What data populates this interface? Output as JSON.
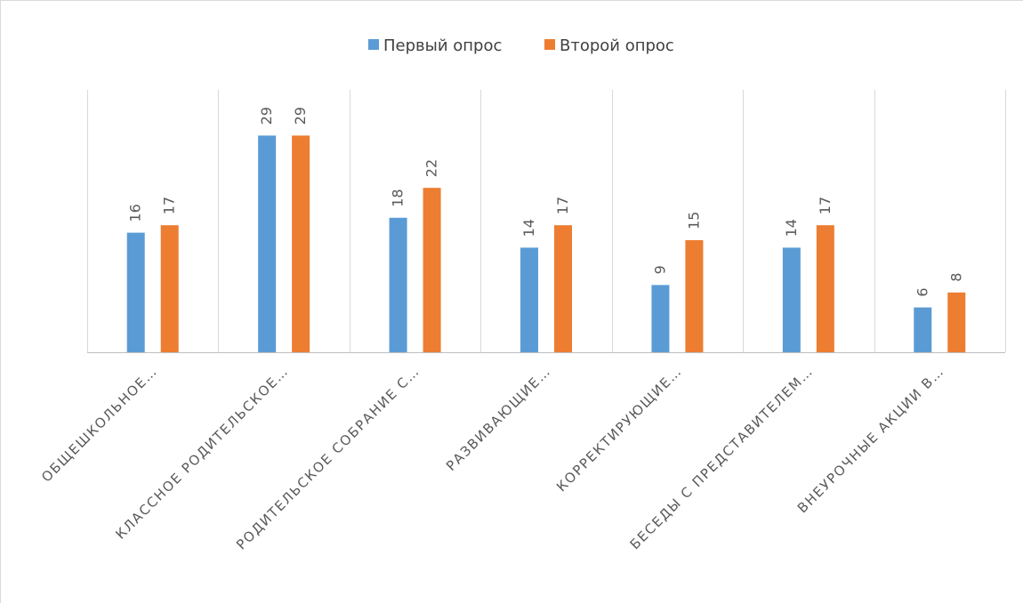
{
  "chart_data": {
    "type": "bar",
    "title": "",
    "xlabel": "",
    "ylabel": "",
    "ylim": [
      0,
      32
    ],
    "grid": "vertical category separators",
    "legend_position": "top",
    "categories": [
      "ОБЩЕШКОЛЬНОЕ…",
      "КЛАССНОЕ РОДИТЕЛЬСКОЕ…",
      "РОДИТЕЛЬСКОЕ СОБРАНИЕ С…",
      "РАЗВИВАЮЩИЕ…",
      "КОРРЕКТИРУЮЩИЕ…",
      "БЕСЕДЫ С ПРЕДСТАВИТЕЛЕМ…",
      "ВНЕУРОЧНЫЕ АКЦИИ В…"
    ],
    "series": [
      {
        "name": "Первый опрос",
        "color": "#5b9bd5",
        "values": [
          16,
          29,
          18,
          14,
          9,
          14,
          6
        ]
      },
      {
        "name": "Второй опрос",
        "color": "#ed7d31",
        "values": [
          17,
          29,
          22,
          17,
          15,
          17,
          8
        ]
      }
    ]
  }
}
